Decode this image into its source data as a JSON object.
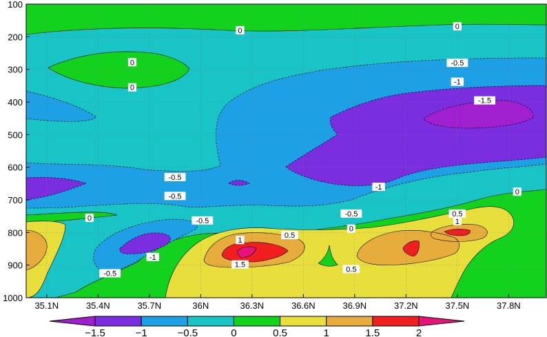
{
  "chart_data": {
    "type": "contour",
    "title": "",
    "xlabel": "",
    "ylabel": "",
    "x_ticks": [
      "35.1N",
      "35.4N",
      "35.7N",
      "36N",
      "36.3N",
      "36.6N",
      "36.9N",
      "37.2N",
      "37.5N",
      "37.8N"
    ],
    "x_range": [
      34.98,
      38.02
    ],
    "y_ticks": [
      100,
      200,
      300,
      400,
      500,
      600,
      700,
      800,
      900,
      1000
    ],
    "y_range": [
      100,
      1000
    ],
    "y_inverted": true,
    "grid": true,
    "levels": [
      -1.5,
      -1,
      -0.5,
      0,
      0.5,
      1,
      1.5,
      2
    ],
    "colorbar": {
      "labels": [
        "-1.5",
        "-1",
        "-0.5",
        "0",
        "0.5",
        "1",
        "1.5",
        "2"
      ],
      "colors": [
        "#a020d0",
        "#7a2ee0",
        "#1ea0e6",
        "#19c4c6",
        "#12d21e",
        "#e8de3c",
        "#e6ac3c",
        "#f01e1e",
        "#e6147a"
      ],
      "placement": "bottom"
    },
    "contour_labels": [
      {
        "text": "0",
        "x": 36.23,
        "y": 180
      },
      {
        "text": "0",
        "x": 37.5,
        "y": 168
      },
      {
        "text": "0",
        "x": 35.6,
        "y": 278
      },
      {
        "text": "0",
        "x": 35.6,
        "y": 355
      },
      {
        "text": "-0.5",
        "x": 37.5,
        "y": 280
      },
      {
        "text": "-1",
        "x": 37.5,
        "y": 338
      },
      {
        "text": "-1.5",
        "x": 37.66,
        "y": 395
      },
      {
        "text": "-0.5",
        "x": 35.85,
        "y": 630
      },
      {
        "text": "-0.5",
        "x": 35.85,
        "y": 688
      },
      {
        "text": "-1",
        "x": 37.04,
        "y": 660
      },
      {
        "text": "0",
        "x": 37.85,
        "y": 675
      },
      {
        "text": "-0.5",
        "x": 36.01,
        "y": 763
      },
      {
        "text": "0",
        "x": 35.35,
        "y": 755
      },
      {
        "text": "-0.5",
        "x": 36.88,
        "y": 742
      },
      {
        "text": "0",
        "x": 36.88,
        "y": 788
      },
      {
        "text": "0.5",
        "x": 37.5,
        "y": 742
      },
      {
        "text": "1",
        "x": 37.5,
        "y": 765
      },
      {
        "text": "0.5",
        "x": 36.52,
        "y": 808
      },
      {
        "text": "1",
        "x": 36.23,
        "y": 823
      },
      {
        "text": "-1",
        "x": 35.72,
        "y": 875
      },
      {
        "text": "1.5",
        "x": 36.23,
        "y": 898
      },
      {
        "text": "-0.5",
        "x": 35.47,
        "y": 925
      },
      {
        "text": "0.5",
        "x": 36.88,
        "y": 912
      }
    ]
  }
}
